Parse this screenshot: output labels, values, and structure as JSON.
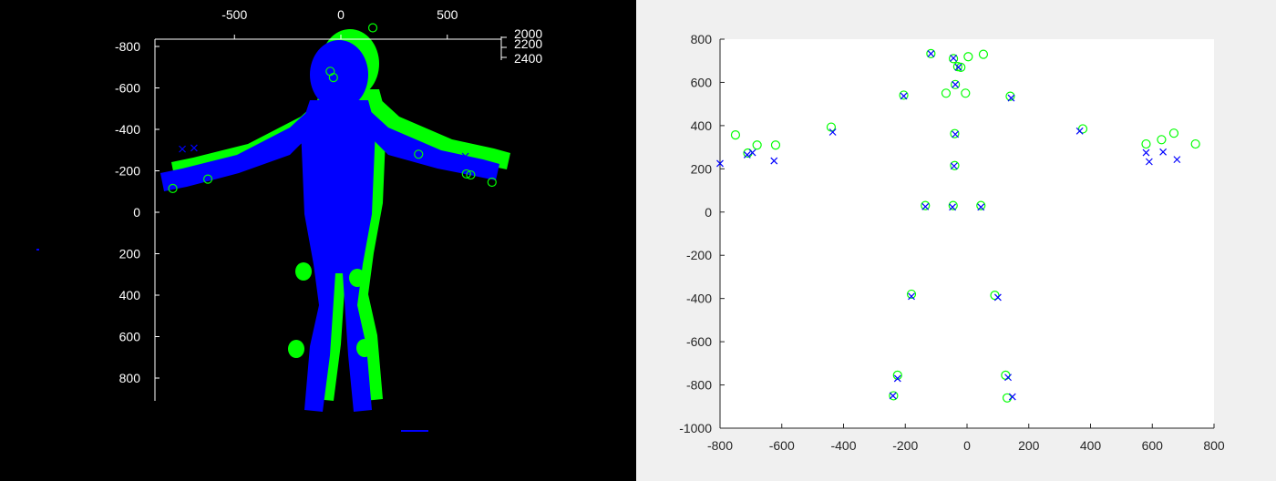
{
  "colors": {
    "green": "#00ff00",
    "blue": "#0000ff",
    "axis_light": "#ffffff",
    "axis_dark": "#262626",
    "plot_bg": "#ffffff",
    "dark_bg": "#000000"
  },
  "chart_data": [
    {
      "type": "scatter",
      "panel": "left",
      "description_of_layers": [
        "blue point cloud body",
        "green point cloud body"
      ],
      "xlim": [
        -800,
        800
      ],
      "ylim_reversed": [
        -900,
        900
      ],
      "zlim": [
        2000,
        2400
      ],
      "x_ticks": [
        "-500",
        "0",
        "500"
      ],
      "y_ticks": [
        "-800",
        "-600",
        "-400",
        "-200",
        "0",
        "200",
        "400",
        "600",
        "800"
      ],
      "z_ticks": [
        "2000",
        "2200",
        "2400"
      ],
      "series": [
        {
          "marker": "o",
          "color": "green",
          "points": [
            [
              -790,
              -115
            ],
            [
              -625,
              -160
            ],
            [
              -50,
              -680
            ],
            [
              -35,
              -650
            ],
            [
              365,
              -280
            ],
            [
              590,
              -185
            ],
            [
              610,
              -180
            ],
            [
              710,
              -145
            ],
            [
              150,
              -890
            ]
          ]
        },
        {
          "marker": "x",
          "color": "blue",
          "points": [
            [
              -745,
              -305
            ],
            [
              -690,
              -310
            ],
            [
              5,
              -690
            ],
            [
              585,
              -270
            ]
          ]
        }
      ]
    },
    {
      "type": "scatter",
      "panel": "right",
      "xlim": [
        -800,
        800
      ],
      "ylim": [
        -1000,
        800
      ],
      "x_ticks": [
        "-800",
        "-600",
        "-400",
        "-200",
        "0",
        "200",
        "400",
        "600",
        "800"
      ],
      "y_ticks": [
        "800",
        "600",
        "400",
        "200",
        "0",
        "-200",
        "-400",
        "-600",
        "-800",
        "-1000"
      ],
      "series": [
        {
          "marker": "o",
          "color": "green",
          "points": [
            [
              -117,
              733
            ],
            [
              -44,
              710
            ],
            [
              4,
              719
            ],
            [
              53,
              730
            ],
            [
              -30,
              673
            ],
            [
              -20,
              670
            ],
            [
              -205,
              541
            ],
            [
              -68,
              550
            ],
            [
              -5,
              550
            ],
            [
              140,
              536
            ],
            [
              -38,
              590
            ],
            [
              -40,
              363
            ],
            [
              -40,
              215
            ],
            [
              -440,
              393
            ],
            [
              375,
              385
            ],
            [
              -750,
              357
            ],
            [
              -710,
              273
            ],
            [
              -680,
              310
            ],
            [
              -620,
              310
            ],
            [
              580,
              315
            ],
            [
              630,
              335
            ],
            [
              670,
              365
            ],
            [
              740,
              315
            ],
            [
              -135,
              30
            ],
            [
              -45,
              30
            ],
            [
              45,
              30
            ],
            [
              -180,
              -380
            ],
            [
              90,
              -385
            ],
            [
              -225,
              -755
            ],
            [
              -238,
              -850
            ],
            [
              125,
              -755
            ],
            [
              130,
              -860
            ]
          ]
        },
        {
          "marker": "x",
          "color": "blue",
          "points": [
            [
              -117,
              733
            ],
            [
              -44,
              712
            ],
            [
              -28,
              670
            ],
            [
              -38,
              590
            ],
            [
              -205,
              537
            ],
            [
              143,
              528
            ],
            [
              -38,
              360
            ],
            [
              -42,
              213
            ],
            [
              -435,
              370
            ],
            [
              365,
              375
            ],
            [
              -800,
              225
            ],
            [
              -712,
              265
            ],
            [
              -695,
              275
            ],
            [
              -625,
              237
            ],
            [
              580,
              275
            ],
            [
              590,
              233
            ],
            [
              635,
              278
            ],
            [
              680,
              243
            ],
            [
              -135,
              25
            ],
            [
              -47,
              23
            ],
            [
              45,
              23
            ],
            [
              -180,
              -390
            ],
            [
              100,
              -395
            ],
            [
              -225,
              -770
            ],
            [
              -240,
              -850
            ],
            [
              133,
              -765
            ],
            [
              147,
              -855
            ]
          ]
        }
      ]
    }
  ]
}
